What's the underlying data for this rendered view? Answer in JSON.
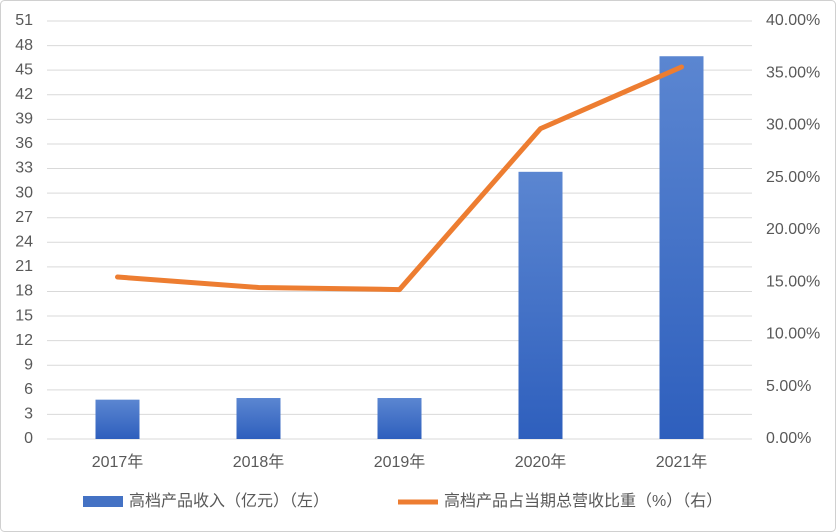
{
  "chart_data": {
    "type": "bar-line",
    "categories": [
      "2017年",
      "2018年",
      "2019年",
      "2020年",
      "2021年"
    ],
    "series": [
      {
        "name": "高档产品收入（亿元）（左）",
        "type": "bar",
        "color": "#4472c4",
        "values": [
          4.8,
          5.0,
          5.0,
          32.6,
          46.7
        ]
      },
      {
        "name": "高档产品占当期总营收比重（%）（右）",
        "type": "line",
        "axis": "y2",
        "color": "#ed7d31",
        "values": [
          15.5,
          14.5,
          14.3,
          29.7,
          35.6
        ]
      }
    ],
    "ylim": [
      0,
      51
    ],
    "yticks": [
      0,
      3,
      6,
      9,
      12,
      15,
      18,
      21,
      24,
      27,
      30,
      33,
      36,
      39,
      42,
      45,
      48,
      51
    ],
    "y2lim": [
      0,
      40
    ],
    "y2ticks": [
      {
        "value": 0,
        "label": "0.00%"
      },
      {
        "value": 5,
        "label": "5.00%"
      },
      {
        "value": 10,
        "label": "10.00%"
      },
      {
        "value": 15,
        "label": "15.00%"
      },
      {
        "value": 20,
        "label": "20.00%"
      },
      {
        "value": 25,
        "label": "25.00%"
      },
      {
        "value": 30,
        "label": "30.00%"
      },
      {
        "value": 35,
        "label": "35.00%"
      },
      {
        "value": 40,
        "label": "40.00%"
      }
    ],
    "grid": true
  }
}
